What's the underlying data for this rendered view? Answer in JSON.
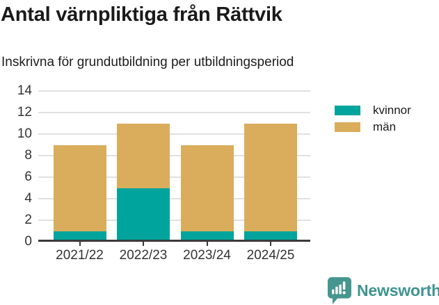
{
  "title": "Antal värnpliktiga från Rättvik",
  "subtitle": "Inskrivna för grundutbildning per utbildningsperiod",
  "chart_data": {
    "type": "bar",
    "stacked": true,
    "categories": [
      "2021/22",
      "2022/23",
      "2023/24",
      "2024/25"
    ],
    "series": [
      {
        "name": "kvinnor",
        "color": "#00a49c",
        "values": [
          1,
          5,
          1,
          1
        ]
      },
      {
        "name": "män",
        "color": "#d9ad5c",
        "values": [
          8,
          6,
          8,
          10
        ]
      }
    ],
    "ylim": [
      0,
      14
    ],
    "yticks": [
      0,
      2,
      4,
      6,
      8,
      10,
      12,
      14
    ],
    "grid": true,
    "legend_position": "right"
  },
  "colors": {
    "axis": "#3a3a3a",
    "gridline": "#e1e1e1",
    "tick_label": "#333333",
    "title_text": "#1a1a1a"
  },
  "footer": {
    "brand": "Newsworthy",
    "brand_color": "#3e948f",
    "icon_color": "#45968f",
    "logo_icon": "bar-chart-speech-bubble-icon"
  }
}
